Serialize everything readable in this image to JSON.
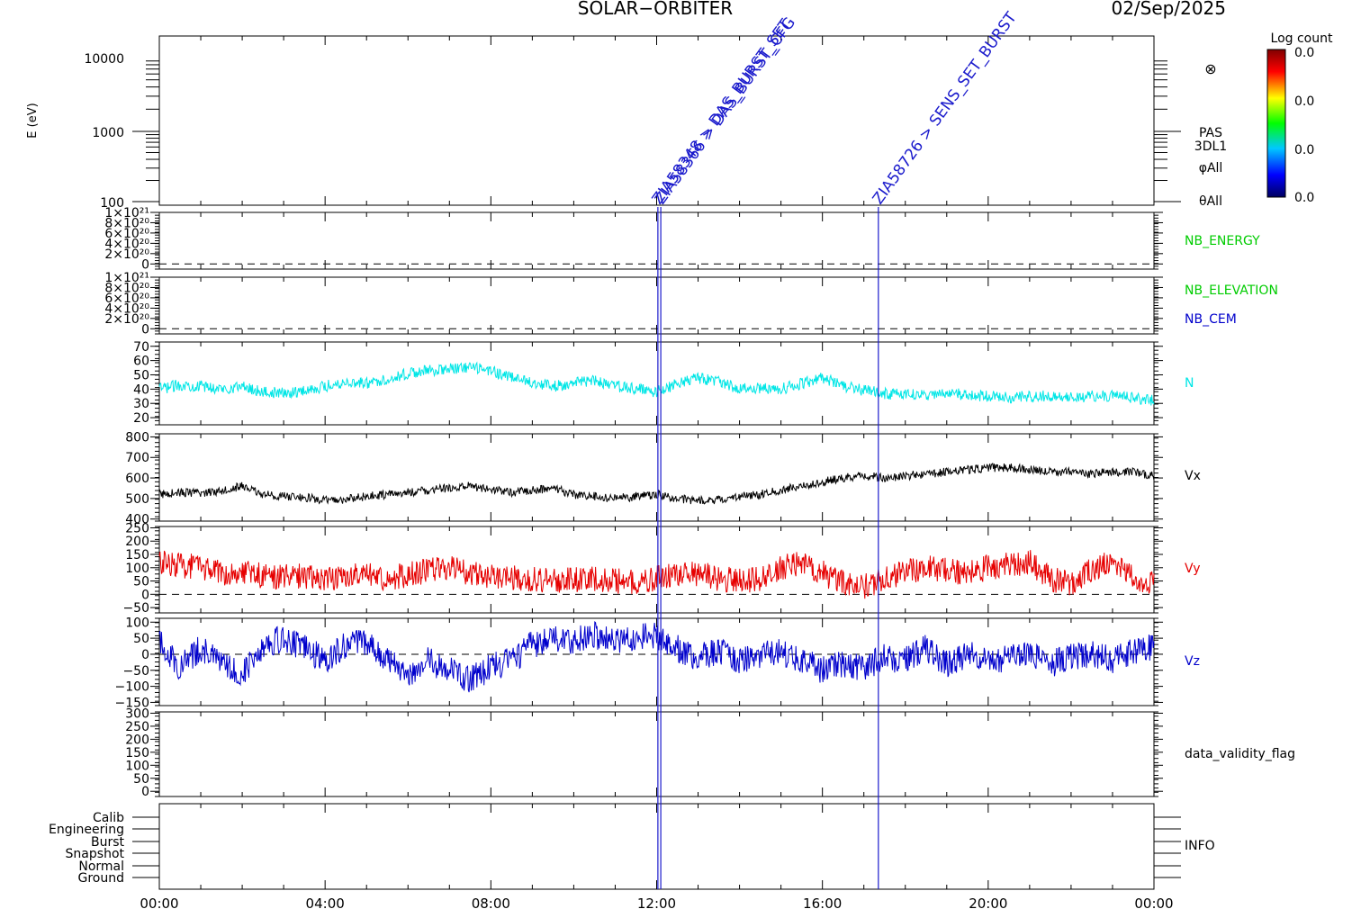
{
  "header": {
    "mission": "SOLAR−ORBITER",
    "date": "02/Sep/2025"
  },
  "colorbar": {
    "title": "Log count",
    "ticks": [
      "0.0",
      "0.0",
      "0.0",
      "0.0"
    ]
  },
  "side_labels": {
    "pas": "PAS",
    "dl1": "3DL1",
    "phi": "φAll",
    "theta": "θAll",
    "nb_energy": "NB_ENERGY",
    "nb_elevation": "NB_ELEVATION",
    "nb_cem": "NB_CEM",
    "n": "N",
    "vx": "Vx",
    "vy": "Vy",
    "vz": "Vz",
    "validity": "data_validity_flag",
    "info": "INFO"
  },
  "colors": {
    "n": "#00e6e6",
    "vx": "#000000",
    "vy": "#e60000",
    "vz": "#0000cc",
    "nb_energy": "#00cc00",
    "nb_elevation": "#00cc00",
    "nb_cem": "#0000cc",
    "event": "#1a1acc"
  },
  "events": [
    {
      "time": 12.03,
      "label": "ZIA58348 > DAS_BURST_SET"
    },
    {
      "time": 12.1,
      "label": "ZIA58366 > DAS_BURST_CFG"
    },
    {
      "time": 17.35,
      "label": "ZIA58726 > SENS_SET_BURST"
    }
  ],
  "spectrogram": {
    "ylabel": "E (eV)",
    "ticks": [
      "10000",
      "1000",
      "100"
    ]
  },
  "mode_labels": [
    "Calib",
    "Engineering",
    "Burst",
    "Snapshot",
    "Normal",
    "Ground"
  ],
  "x_ticks": [
    "00:00",
    "04:00",
    "08:00",
    "12:00",
    "16:00",
    "20:00",
    "00:00"
  ],
  "chart_data": [
    {
      "type": "line",
      "name": "nb_energy",
      "xlim": [
        0,
        24
      ],
      "ylim": [
        -100000000000000000000,
        1000000000000000000000
      ],
      "tick_labels": [
        "1×10²¹",
        "8×10²⁰",
        "6×10²⁰",
        "4×10²⁰",
        "2×10²⁰",
        "0"
      ],
      "reference_line": 0
    },
    {
      "type": "line",
      "name": "nb_elevation_cem",
      "xlim": [
        0,
        24
      ],
      "ylim": [
        -100000000000000000000,
        1000000000000000000000
      ],
      "tick_labels": [
        "1×10²¹",
        "8×10²⁰",
        "6×10²⁰",
        "4×10²⁰",
        "2×10²⁰",
        "0"
      ],
      "reference_line": 0
    },
    {
      "type": "line",
      "name": "N",
      "xlim": [
        0,
        24
      ],
      "ylim": [
        15,
        73
      ],
      "tick_labels": [
        "70",
        "60",
        "50",
        "40",
        "30",
        "20"
      ],
      "x": [
        0,
        0.5,
        1,
        1.5,
        2,
        2.5,
        3,
        3.5,
        4,
        4.5,
        5,
        5.5,
        6,
        6.5,
        7,
        7.5,
        8,
        8.5,
        9,
        9.5,
        10,
        10.5,
        11,
        11.5,
        12,
        12.5,
        13,
        13.5,
        14,
        14.5,
        15,
        15.5,
        16,
        16.5,
        17,
        17.5,
        18,
        18.5,
        19,
        19.5,
        20,
        20.5,
        21,
        21.5,
        22,
        22.5,
        23,
        23.5,
        24
      ],
      "y": [
        40,
        43,
        42,
        40,
        42,
        38,
        37,
        39,
        42,
        45,
        44,
        47,
        51,
        53,
        54,
        55,
        53,
        48,
        45,
        42,
        44,
        46,
        42,
        40,
        38,
        44,
        48,
        45,
        40,
        41,
        40,
        44,
        48,
        42,
        39,
        37,
        36,
        36,
        37,
        36,
        35,
        34,
        35,
        35,
        34,
        35,
        35,
        34,
        32
      ]
    },
    {
      "type": "line",
      "name": "Vx",
      "xlim": [
        0,
        24
      ],
      "ylim": [
        390,
        815
      ],
      "tick_labels": [
        "800",
        "700",
        "600",
        "500",
        "400"
      ],
      "x": [
        0,
        0.5,
        1,
        1.5,
        2,
        2.5,
        3,
        3.5,
        4,
        4.5,
        5,
        5.5,
        6,
        6.5,
        7,
        7.5,
        8,
        8.5,
        9,
        9.5,
        10,
        10.5,
        11,
        11.5,
        12,
        12.5,
        13,
        13.5,
        14,
        14.5,
        15,
        15.5,
        16,
        16.5,
        17,
        17.5,
        18,
        18.5,
        19,
        19.5,
        20,
        20.5,
        21,
        21.5,
        22,
        22.5,
        23,
        23.5,
        24
      ],
      "y": [
        520,
        530,
        525,
        540,
        560,
        520,
        510,
        505,
        490,
        495,
        510,
        520,
        530,
        540,
        550,
        560,
        545,
        530,
        540,
        550,
        520,
        510,
        500,
        510,
        520,
        500,
        490,
        495,
        510,
        520,
        540,
        560,
        580,
        600,
        610,
        600,
        610,
        620,
        630,
        640,
        650,
        650,
        640,
        630,
        630,
        620,
        630,
        630,
        610
      ]
    },
    {
      "type": "line",
      "name": "Vy",
      "xlim": [
        0,
        24
      ],
      "ylim": [
        -70,
        255
      ],
      "tick_labels": [
        "250",
        "200",
        "150",
        "100",
        "50",
        "0",
        "−50"
      ],
      "reference_line": 0,
      "x": [
        0,
        0.5,
        1,
        1.5,
        2,
        2.5,
        3,
        3.5,
        4,
        4.5,
        5,
        5.5,
        6,
        6.5,
        7,
        7.5,
        8,
        8.5,
        9,
        9.5,
        10,
        10.5,
        11,
        11.5,
        12,
        12.5,
        13,
        13.5,
        14,
        14.5,
        15,
        15.5,
        16,
        16.5,
        17,
        17.5,
        18,
        18.5,
        19,
        19.5,
        20,
        20.5,
        21,
        21.5,
        22,
        22.5,
        23,
        23.5,
        24
      ],
      "y": [
        120,
        110,
        100,
        80,
        90,
        70,
        65,
        70,
        60,
        65,
        70,
        60,
        75,
        90,
        100,
        80,
        70,
        60,
        55,
        50,
        55,
        60,
        50,
        45,
        60,
        70,
        80,
        60,
        50,
        60,
        100,
        120,
        80,
        40,
        30,
        60,
        80,
        100,
        90,
        80,
        100,
        110,
        120,
        60,
        40,
        90,
        130,
        60,
        40
      ]
    },
    {
      "type": "line",
      "name": "Vz",
      "xlim": [
        0,
        24
      ],
      "ylim": [
        -160,
        112
      ],
      "tick_labels": [
        "100",
        "50",
        "0",
        "−50",
        "−100",
        "−150"
      ],
      "reference_line": 0,
      "x": [
        0,
        0.5,
        1,
        1.5,
        2,
        2.5,
        3,
        3.5,
        4,
        4.5,
        5,
        5.5,
        6,
        6.5,
        7,
        7.5,
        8,
        8.5,
        9,
        9.5,
        10,
        10.5,
        11,
        11.5,
        12,
        12.5,
        13,
        13.5,
        14,
        14.5,
        15,
        15.5,
        16,
        16.5,
        17,
        17.5,
        18,
        18.5,
        19,
        19.5,
        20,
        20.5,
        21,
        21.5,
        22,
        22.5,
        23,
        23.5,
        24
      ],
      "y": [
        40,
        -40,
        20,
        -30,
        -60,
        30,
        50,
        20,
        -20,
        30,
        40,
        -20,
        -60,
        -20,
        -50,
        -80,
        -40,
        -20,
        30,
        50,
        40,
        60,
        40,
        50,
        60,
        20,
        -10,
        10,
        -20,
        0,
        10,
        -20,
        -50,
        -30,
        -40,
        -10,
        -20,
        20,
        -30,
        0,
        -20,
        -10,
        10,
        -30,
        -10,
        0,
        -20,
        10,
        20
      ]
    },
    {
      "type": "line",
      "name": "data_validity_flag",
      "xlim": [
        0,
        24
      ],
      "ylim": [
        -20,
        305
      ],
      "tick_labels": [
        "300",
        "250",
        "200",
        "150",
        "100",
        "50",
        "0"
      ]
    }
  ]
}
